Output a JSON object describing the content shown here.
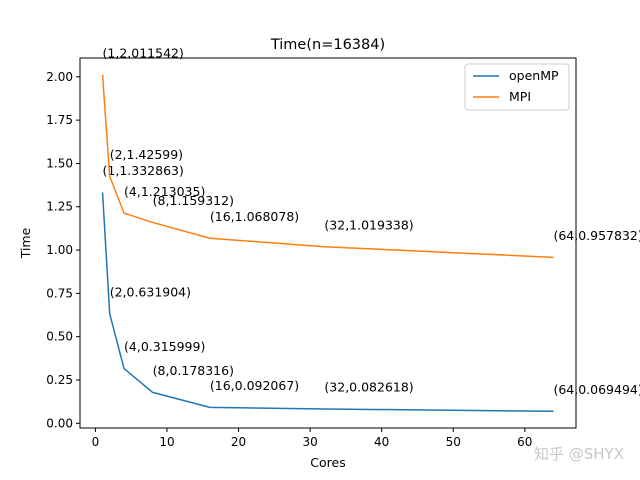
{
  "chart_data": {
    "type": "line",
    "title": "Time(n=16384)",
    "xlabel": "Cores",
    "ylabel": "Time",
    "xlim": [
      -2.15,
      67.15
    ],
    "ylim": [
      -0.0271,
      2.1086
    ],
    "xticks": [
      0,
      10,
      20,
      30,
      40,
      50,
      60
    ],
    "yticks": [
      0.0,
      0.25,
      0.5,
      0.75,
      1.0,
      1.25,
      1.5,
      1.75,
      2.0
    ],
    "ytick_labels": [
      "0.00",
      "0.25",
      "0.50",
      "0.75",
      "1.00",
      "1.25",
      "1.50",
      "1.75",
      "2.00"
    ],
    "x": [
      1,
      2,
      4,
      8,
      16,
      32,
      64
    ],
    "series": [
      {
        "name": "openMP",
        "color": "#1f77b4",
        "values": [
          1.332863,
          0.631904,
          0.315999,
          0.178316,
          0.092067,
          0.082618,
          0.069494
        ],
        "annotations": [
          "(1,1.332863)",
          "(2,0.631904)",
          "(4,0.315999)",
          "(8,0.178316)",
          "(16,0.092067)",
          "(32,0.082618)",
          "(64,0.069494)"
        ]
      },
      {
        "name": "MPI",
        "color": "#ff7f0e",
        "values": [
          2.011542,
          1.42599,
          1.213035,
          1.159312,
          1.068078,
          1.019338,
          0.957832
        ],
        "annotations": [
          "(1,2.011542)",
          "(2,1.42599)",
          "(4,1.213035)",
          "(8,1.159312)",
          "(16,1.068078)",
          "(32,1.019338)",
          "(64,0.957832)"
        ]
      }
    ],
    "annotation_y_offset": 0.1,
    "legend": "top-right",
    "grid": false
  },
  "watermark": "知乎 @SHYX"
}
